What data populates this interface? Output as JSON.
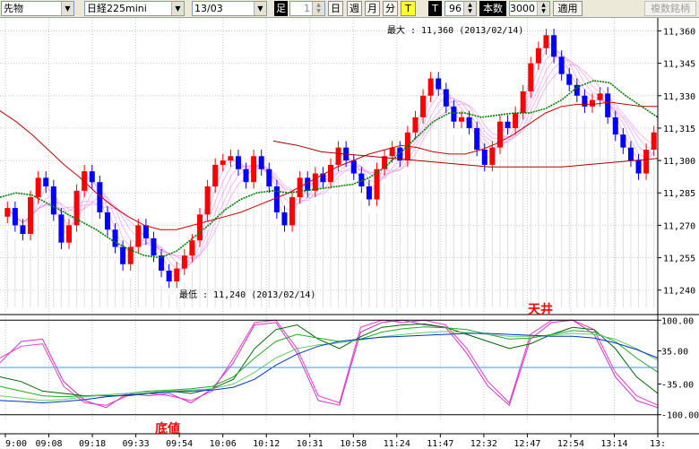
{
  "toolbar": {
    "instrument_type": "先物",
    "product": "日経225mini",
    "contract": "13/03",
    "period_label": "足",
    "period_value": "1",
    "day": "日",
    "week": "週",
    "month": "月",
    "minute": "分",
    "tick_t": "T",
    "tick_t2": "T",
    "tick_value": "96",
    "count_label": "本数",
    "count_value": "3000",
    "apply": "適用",
    "compare": "複数銘柄"
  },
  "colors": {
    "up_candle": "#ff0000",
    "down_candle": "#0000ff",
    "ma_short": "#008000",
    "ma_long": "#cc0000",
    "fan": "#ee66ee",
    "zero_line": "#3399ff"
  },
  "price_axis": [
    "11,360",
    "11,345",
    "11,330",
    "11,315",
    "11,300",
    "11,285",
    "11,270",
    "11,255",
    "11,240"
  ],
  "osc_axis": [
    "100.00",
    "35.00",
    "-35.00",
    "-100.00"
  ],
  "time_axis": [
    "9:00",
    "09:08",
    "09:18",
    "09:33",
    "09:54",
    "10:06",
    "10:12",
    "10:31",
    "10:58",
    "11:24",
    "11:47",
    "12:32",
    "12:47",
    "12:54",
    "13:14",
    "13:"
  ],
  "annotations": {
    "max_label": "最大 : 11,360 (2013/02/14)",
    "min_label": "最低 : 11,240 (2013/02/14)",
    "ceiling": "天井",
    "bottom": "底値"
  },
  "price_range": [
    11232,
    11366
  ],
  "osc_range": [
    -110,
    110
  ],
  "price_closes": [
    11278,
    11270,
    11266,
    11283,
    11292,
    11288,
    11275,
    11262,
    11270,
    11286,
    11295,
    11290,
    11276,
    11268,
    11260,
    11252,
    11260,
    11270,
    11264,
    11256,
    11249,
    11244,
    11250,
    11256,
    11263,
    11275,
    11288,
    11298,
    11300,
    11302,
    11296,
    11290,
    11302,
    11296,
    11288,
    11276,
    11270,
    11283,
    11292,
    11286,
    11294,
    11290,
    11298,
    11306,
    11300,
    11294,
    11288,
    11282,
    11296,
    11302,
    11306,
    11300,
    11313,
    11320,
    11330,
    11338,
    11333,
    11325,
    11318,
    11320,
    11315,
    11305,
    11298,
    11306,
    11318,
    11315,
    11322,
    11332,
    11345,
    11352,
    11358,
    11348,
    11340,
    11335,
    11330,
    11325,
    11328,
    11331,
    11320,
    11312,
    11306,
    11300,
    11294,
    11305,
    11313
  ],
  "ma_short": [
    11283,
    11285,
    11284,
    11280,
    11276,
    11272,
    11268,
    11263,
    11259,
    11256,
    11255,
    11258,
    11264,
    11270,
    11277,
    11282,
    11285,
    11286,
    11285,
    11286,
    11287,
    11288,
    11289,
    11292,
    11297,
    11304,
    11311,
    11318,
    11322,
    11322,
    11320,
    11321,
    11322,
    11322,
    11324,
    11328,
    11334,
    11337,
    11336,
    11330,
    11325,
    11320
  ],
  "ma_long": [
    11323,
    11318,
    11312,
    11305,
    11298,
    11292,
    11285,
    11279,
    11274,
    11270,
    11268,
    11268,
    11270,
    11272,
    11274,
    11276,
    11279,
    11282,
    11285,
    11289,
    11293,
    11297,
    11300,
    11303,
    11305,
    11307,
    11306,
    11304,
    11303,
    11303,
    11305,
    11308,
    11312,
    11317,
    11322,
    11325,
    11326,
    11326,
    11327,
    11326,
    11325,
    11325
  ],
  "ma_mid": [
    11309,
    11307,
    11304,
    11303,
    11302,
    11301,
    11300,
    11299,
    11298,
    11297,
    11297,
    11297,
    11297,
    11298,
    11299,
    11300,
    11301
  ],
  "osc_series": [
    {
      "values": [
        20,
        45,
        50,
        -40,
        -75,
        -80,
        -60,
        -55,
        -60,
        -70,
        -50,
        20,
        95,
        100,
        40,
        -60,
        -75,
        85,
        100,
        95,
        100,
        90,
        40,
        -30,
        -75,
        70,
        100,
        100,
        80,
        -10,
        -60,
        -80
      ]
    },
    {
      "values": [
        10,
        55,
        60,
        -30,
        -70,
        -85,
        -55,
        -60,
        -55,
        -75,
        -45,
        10,
        90,
        95,
        30,
        -70,
        -80,
        75,
        95,
        100,
        90,
        85,
        30,
        -40,
        -80,
        60,
        95,
        100,
        70,
        -20,
        -70,
        -85
      ]
    },
    {
      "values": [
        -20,
        -30,
        -50,
        -55,
        -60,
        -60,
        -60,
        -55,
        -50,
        -55,
        -45,
        -25,
        40,
        80,
        90,
        60,
        40,
        65,
        85,
        90,
        92,
        85,
        70,
        55,
        40,
        50,
        70,
        85,
        80,
        40,
        -20,
        -55
      ]
    },
    {
      "values": [
        -40,
        -50,
        -60,
        -62,
        -60,
        -58,
        -55,
        -50,
        -48,
        -45,
        -40,
        -20,
        20,
        55,
        70,
        62,
        55,
        60,
        75,
        82,
        86,
        84,
        80,
        70,
        60,
        62,
        70,
        78,
        75,
        55,
        20,
        -10
      ]
    },
    {
      "values": [
        -60,
        -65,
        -70,
        -68,
        -62,
        -58,
        -55,
        -52,
        -50,
        -48,
        -45,
        -35,
        -10,
        20,
        40,
        48,
        52,
        58,
        65,
        70,
        74,
        76,
        74,
        70,
        66,
        66,
        68,
        72,
        70,
        60,
        40,
        15
      ]
    },
    {
      "values": [
        -70,
        -72,
        -75,
        -72,
        -68,
        -62,
        -58,
        -55,
        -52,
        -50,
        -48,
        -42,
        -25,
        5,
        28,
        45,
        55,
        60,
        64,
        66,
        68,
        70,
        72,
        72,
        70,
        68,
        66,
        66,
        62,
        52,
        38,
        20
      ]
    }
  ]
}
